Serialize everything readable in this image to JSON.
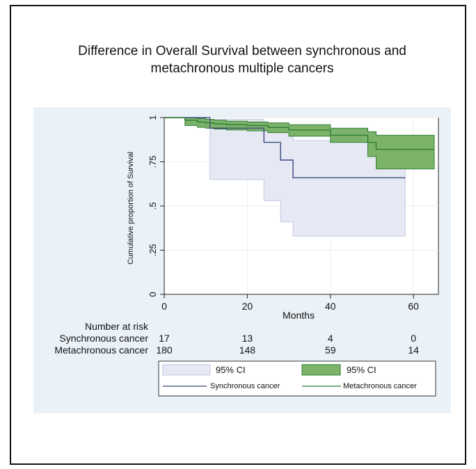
{
  "chart_data": {
    "type": "line",
    "title": "Difference in Overall Survival between synchronous and metachronous multiple cancers",
    "title_lines": [
      "Difference in Overall Survival between synchronous and",
      "metachronous multiple cancers"
    ],
    "xlabel": "Months",
    "ylabel": "Cumulative proportion of Survival",
    "xlim": [
      0,
      66
    ],
    "ylim": [
      0,
      1.0
    ],
    "x_ticks": [
      0,
      20,
      40,
      60
    ],
    "y_ticks": [
      0,
      0.25,
      0.5,
      0.75,
      1
    ],
    "y_tick_labels": [
      "0",
      ".25",
      ".5",
      ".75",
      "1"
    ],
    "grid": true,
    "legend_position": "bottom",
    "series": [
      {
        "name": "Synchronous cancer",
        "color": "#3b4a7e",
        "ci_color": "#e6e9f4",
        "ci_stroke": "#c3c8e0",
        "ci_label": "95% CI",
        "x": [
          0,
          11,
          24,
          28,
          31,
          58
        ],
        "y": [
          1.0,
          0.94,
          0.86,
          0.76,
          0.66,
          0.66
        ],
        "ci_upper": [
          1.0,
          0.99,
          0.96,
          0.93,
          0.87,
          0.87
        ],
        "ci_lower": [
          1.0,
          0.65,
          0.53,
          0.41,
          0.33,
          0.33
        ]
      },
      {
        "name": "Metachronous cancer",
        "color": "#2e7d32",
        "ci_color": "#7cb36a",
        "ci_stroke": "#2e7d32",
        "ci_label": "95% CI",
        "x": [
          0,
          5,
          8,
          10,
          12,
          15,
          20,
          25,
          30,
          40,
          49,
          51,
          65
        ],
        "y": [
          1.0,
          0.985,
          0.975,
          0.97,
          0.965,
          0.96,
          0.955,
          0.945,
          0.93,
          0.9,
          0.86,
          0.82,
          0.82
        ],
        "ci_upper": [
          1.0,
          1.0,
          0.995,
          0.99,
          0.985,
          0.98,
          0.975,
          0.97,
          0.96,
          0.94,
          0.92,
          0.9,
          0.9
        ],
        "ci_lower": [
          1.0,
          0.955,
          0.945,
          0.94,
          0.935,
          0.93,
          0.925,
          0.915,
          0.895,
          0.86,
          0.78,
          0.71,
          0.71
        ]
      }
    ],
    "risk_table": {
      "title": "Number at risk",
      "times": [
        0,
        20,
        40,
        60
      ],
      "rows": [
        {
          "label": "Synchronous cancer",
          "values": [
            "17",
            "13",
            "4",
            "0"
          ]
        },
        {
          "label": "Metachronous cancer",
          "values": [
            "180",
            "148",
            "59",
            "14"
          ]
        }
      ]
    }
  },
  "colors": {
    "plot_region": "#eaf2f8",
    "plot_background": "#ffffff",
    "grid": "#eeeeee",
    "axis": "#222222"
  }
}
